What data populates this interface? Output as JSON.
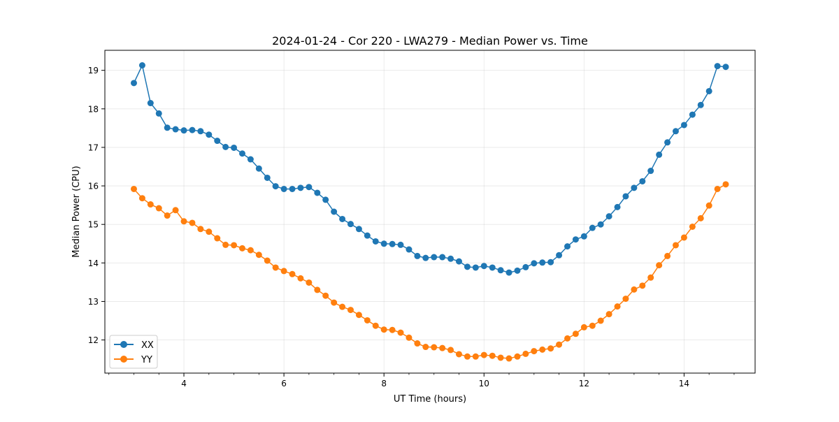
{
  "chart_data": {
    "type": "line",
    "title": "2024-01-24 - Cor 220 - LWA279 - Median Power vs. Time",
    "xlabel": "UT Time (hours)",
    "ylabel": "Median Power (CPU)",
    "xlim": [
      2.42,
      15.42
    ],
    "ylim": [
      11.14,
      19.52
    ],
    "grid": true,
    "legend_position": "lower-left",
    "x_major_ticks": [
      4,
      6,
      8,
      10,
      12,
      14
    ],
    "x_minor_step": 0.5,
    "y_ticks": [
      12,
      13,
      14,
      15,
      16,
      17,
      18,
      19
    ],
    "x": [
      3.0,
      3.167,
      3.333,
      3.5,
      3.667,
      3.833,
      4.0,
      4.167,
      4.333,
      4.5,
      4.667,
      4.833,
      5.0,
      5.167,
      5.333,
      5.5,
      5.667,
      5.833,
      6.0,
      6.167,
      6.333,
      6.5,
      6.667,
      6.833,
      7.0,
      7.167,
      7.333,
      7.5,
      7.667,
      7.833,
      8.0,
      8.167,
      8.333,
      8.5,
      8.667,
      8.833,
      9.0,
      9.167,
      9.333,
      9.5,
      9.667,
      9.833,
      10.0,
      10.167,
      10.333,
      10.5,
      10.667,
      10.833,
      11.0,
      11.167,
      11.333,
      11.5,
      11.667,
      11.833,
      12.0,
      12.167,
      12.333,
      12.5,
      12.667,
      12.833,
      13.0,
      13.167,
      13.333,
      13.5,
      13.667,
      13.833,
      14.0,
      14.167,
      14.333,
      14.5,
      14.667,
      14.833
    ],
    "series": [
      {
        "name": "XX",
        "color": "#1f77b4",
        "values": [
          18.67,
          19.13,
          18.15,
          17.88,
          17.51,
          17.47,
          17.44,
          17.45,
          17.42,
          17.33,
          17.17,
          17.01,
          16.99,
          16.84,
          16.69,
          16.45,
          16.21,
          15.99,
          15.92,
          15.92,
          15.95,
          15.97,
          15.82,
          15.64,
          15.33,
          15.14,
          15.01,
          14.88,
          14.71,
          14.56,
          14.5,
          14.49,
          14.47,
          14.35,
          14.18,
          14.13,
          14.15,
          14.15,
          14.11,
          14.04,
          13.9,
          13.88,
          13.92,
          13.88,
          13.81,
          13.75,
          13.8,
          13.89,
          13.99,
          14.01,
          14.02,
          14.2,
          14.43,
          14.61,
          14.69,
          14.91,
          15.0,
          15.21,
          15.45,
          15.73,
          15.95,
          16.12,
          16.39,
          16.81,
          17.13,
          17.42,
          17.58,
          17.85,
          18.1,
          18.46,
          19.11,
          19.09
        ]
      },
      {
        "name": "YY",
        "color": "#ff7f0e",
        "values": [
          15.92,
          15.68,
          15.52,
          15.42,
          15.23,
          15.37,
          15.08,
          15.04,
          14.88,
          14.81,
          14.64,
          14.47,
          14.46,
          14.38,
          14.33,
          14.21,
          14.06,
          13.88,
          13.79,
          13.71,
          13.6,
          13.49,
          13.3,
          13.15,
          12.97,
          12.86,
          12.78,
          12.65,
          12.51,
          12.37,
          12.27,
          12.26,
          12.19,
          12.06,
          11.91,
          11.82,
          11.81,
          11.79,
          11.74,
          11.63,
          11.57,
          11.57,
          11.61,
          11.59,
          11.54,
          11.52,
          11.57,
          11.64,
          11.71,
          11.75,
          11.78,
          11.88,
          12.04,
          12.16,
          12.33,
          12.37,
          12.5,
          12.67,
          12.87,
          13.07,
          13.31,
          13.41,
          13.62,
          13.94,
          14.18,
          14.46,
          14.66,
          14.94,
          15.16,
          15.49,
          15.92,
          16.04
        ]
      }
    ]
  }
}
